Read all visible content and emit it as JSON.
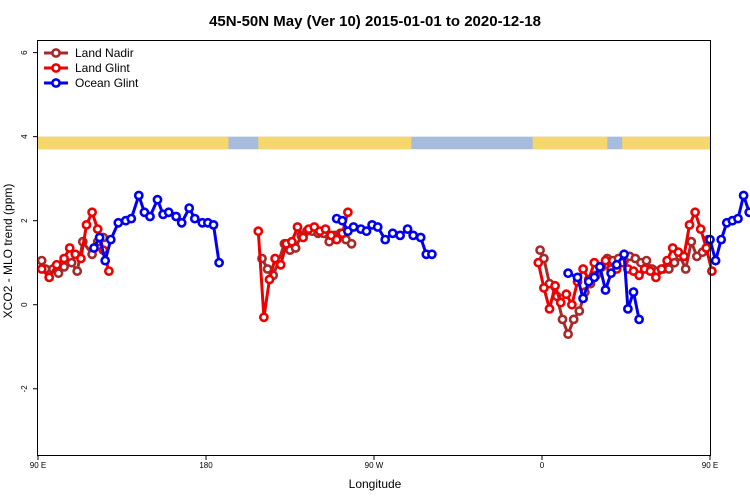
{
  "chart_data": {
    "type": "line",
    "title": "45N-50N May (Ver 10)   2015-01-01 to 2020-12-18",
    "xlabel": "Longitude",
    "ylabel": "XCO2 - MLO trend (ppm)",
    "xlim": [
      90,
      450
    ],
    "ylim": [
      -3.6,
      6.3
    ],
    "xticks": [
      {
        "value": 90,
        "label": "90 E"
      },
      {
        "value": 180,
        "label": "180"
      },
      {
        "value": 270,
        "label": "90 W"
      },
      {
        "value": 360,
        "label": "0"
      },
      {
        "value": 450,
        "label": "90 E"
      },
      {
        "value": 540,
        "label": "180"
      }
    ],
    "yticks": [
      {
        "value": -2,
        "label": "-2"
      },
      {
        "value": 0,
        "label": "0"
      },
      {
        "value": 2,
        "label": "2"
      },
      {
        "value": 4,
        "label": "4"
      },
      {
        "value": 6,
        "label": "6"
      }
    ],
    "grid": false,
    "legend_position": "top-left",
    "land_band": {
      "ymin": 3.7,
      "ymax": 4.0,
      "land_color": "#F5D76E",
      "ocean_color": "#A7BCDD"
    },
    "series": [
      {
        "name": "Land Nadir",
        "color": "#A52A2A",
        "points": [
          [
            92,
            1.05
          ],
          [
            94,
            0.85
          ],
          [
            98,
            0.85
          ],
          [
            101,
            0.75
          ],
          [
            104,
            0.9
          ],
          [
            108,
            1.0
          ],
          [
            111,
            0.8
          ],
          [
            114,
            1.5
          ],
          [
            119,
            1.2
          ],
          [
            122,
            1.5
          ],
          [
            125,
            1.6
          ],
          [
            210,
            1.1
          ],
          [
            213,
            0.85
          ],
          [
            216,
            0.7
          ],
          [
            219,
            1.05
          ],
          [
            222,
            1.45
          ],
          [
            225,
            1.3
          ],
          [
            228,
            1.35
          ],
          [
            231,
            1.65
          ],
          [
            234,
            1.75
          ],
          [
            237,
            1.75
          ],
          [
            240,
            1.7
          ],
          [
            243,
            1.7
          ],
          [
            246,
            1.5
          ],
          [
            249,
            1.65
          ],
          [
            252,
            1.7
          ],
          [
            255,
            1.55
          ],
          [
            258,
            1.45
          ],
          [
            359,
            1.3
          ],
          [
            361,
            1.1
          ],
          [
            364,
            0.5
          ],
          [
            368,
            0.2
          ],
          [
            371,
            -0.35
          ],
          [
            374,
            -0.7
          ],
          [
            377,
            -0.35
          ],
          [
            380,
            -0.15
          ],
          [
            383,
            0.3
          ],
          [
            386,
            0.5
          ],
          [
            389,
            0.7
          ],
          [
            392,
            0.9
          ],
          [
            395,
            1.1
          ],
          [
            398,
            1.05
          ],
          [
            401,
            1.1
          ],
          [
            404,
            1.05
          ],
          [
            407,
            1.15
          ],
          [
            410,
            1.1
          ],
          [
            413,
            1.0
          ],
          [
            416,
            1.05
          ],
          [
            419,
            0.85
          ],
          [
            422,
            0.8
          ],
          [
            425,
            0.85
          ],
          [
            428,
            0.85
          ],
          [
            431,
            1.0
          ],
          [
            434,
            1.15
          ],
          [
            437,
            0.85
          ],
          [
            440,
            1.5
          ],
          [
            443,
            1.15
          ],
          [
            446,
            1.25
          ],
          [
            449,
            1.55
          ]
        ]
      },
      {
        "name": "Land Glint",
        "color": "#EE0000",
        "points": [
          [
            92,
            0.85
          ],
          [
            96,
            0.65
          ],
          [
            100,
            0.95
          ],
          [
            104,
            1.1
          ],
          [
            107,
            1.35
          ],
          [
            110,
            1.2
          ],
          [
            113,
            1.1
          ],
          [
            116,
            1.9
          ],
          [
            119,
            2.2
          ],
          [
            122,
            1.8
          ],
          [
            125,
            1.3
          ],
          [
            128,
            0.8
          ],
          [
            208,
            1.75
          ],
          [
            211,
            -0.3
          ],
          [
            214,
            0.6
          ],
          [
            217,
            1.1
          ],
          [
            220,
            0.95
          ],
          [
            223,
            1.45
          ],
          [
            226,
            1.5
          ],
          [
            229,
            1.85
          ],
          [
            232,
            1.6
          ],
          [
            235,
            1.8
          ],
          [
            238,
            1.85
          ],
          [
            241,
            1.75
          ],
          [
            244,
            1.8
          ],
          [
            247,
            1.65
          ],
          [
            250,
            1.55
          ],
          [
            253,
            1.7
          ],
          [
            256,
            2.2
          ],
          [
            358,
            1.0
          ],
          [
            361,
            0.4
          ],
          [
            364,
            -0.1
          ],
          [
            367,
            0.45
          ],
          [
            370,
            0.05
          ],
          [
            373,
            0.25
          ],
          [
            376,
            0.0
          ],
          [
            379,
            0.55
          ],
          [
            382,
            0.85
          ],
          [
            385,
            0.6
          ],
          [
            388,
            1.0
          ],
          [
            391,
            0.9
          ],
          [
            394,
            1.05
          ],
          [
            397,
            0.85
          ],
          [
            400,
            0.85
          ],
          [
            403,
            1.0
          ],
          [
            406,
            0.85
          ],
          [
            409,
            0.8
          ],
          [
            412,
            0.7
          ],
          [
            415,
            0.85
          ],
          [
            418,
            0.8
          ],
          [
            421,
            0.65
          ],
          [
            424,
            0.85
          ],
          [
            427,
            1.05
          ],
          [
            430,
            1.35
          ],
          [
            433,
            1.25
          ],
          [
            436,
            1.15
          ],
          [
            439,
            1.9
          ],
          [
            442,
            2.2
          ],
          [
            445,
            1.8
          ],
          [
            448,
            1.35
          ],
          [
            451,
            0.8
          ]
        ]
      },
      {
        "name": "Ocean Glint",
        "color": "#0000EE",
        "points": [
          [
            120,
            1.35
          ],
          [
            123,
            1.6
          ],
          [
            126,
            1.05
          ],
          [
            129,
            1.55
          ],
          [
            133,
            1.95
          ],
          [
            137,
            2.0
          ],
          [
            140,
            2.05
          ],
          [
            144,
            2.6
          ],
          [
            147,
            2.2
          ],
          [
            150,
            2.1
          ],
          [
            154,
            2.5
          ],
          [
            157,
            2.15
          ],
          [
            160,
            2.2
          ],
          [
            164,
            2.1
          ],
          [
            167,
            1.95
          ],
          [
            171,
            2.3
          ],
          [
            174,
            2.05
          ],
          [
            178,
            1.95
          ],
          [
            181,
            1.95
          ],
          [
            184,
            1.9
          ],
          [
            187,
            1.0
          ],
          [
            250,
            2.05
          ],
          [
            253,
            2.0
          ],
          [
            256,
            1.75
          ],
          [
            259,
            1.85
          ],
          [
            263,
            1.8
          ],
          [
            266,
            1.75
          ],
          [
            269,
            1.9
          ],
          [
            272,
            1.85
          ],
          [
            276,
            1.55
          ],
          [
            280,
            1.7
          ],
          [
            284,
            1.65
          ],
          [
            288,
            1.8
          ],
          [
            291,
            1.65
          ],
          [
            295,
            1.6
          ],
          [
            298,
            1.2
          ],
          [
            301,
            1.2
          ],
          [
            374,
            0.75
          ],
          [
            379,
            0.65
          ],
          [
            382,
            0.15
          ],
          [
            385,
            0.55
          ],
          [
            388,
            0.65
          ],
          [
            391,
            0.9
          ],
          [
            394,
            0.35
          ],
          [
            397,
            0.75
          ],
          [
            400,
            0.95
          ],
          [
            404,
            1.2
          ],
          [
            406,
            -0.1
          ],
          [
            409,
            0.3
          ],
          [
            412,
            -0.35
          ],
          [
            450,
            1.55
          ],
          [
            453,
            1.05
          ],
          [
            456,
            1.55
          ],
          [
            459,
            1.95
          ],
          [
            462,
            2.0
          ],
          [
            465,
            2.05
          ],
          [
            468,
            2.6
          ],
          [
            471,
            2.2
          ]
        ]
      }
    ]
  }
}
